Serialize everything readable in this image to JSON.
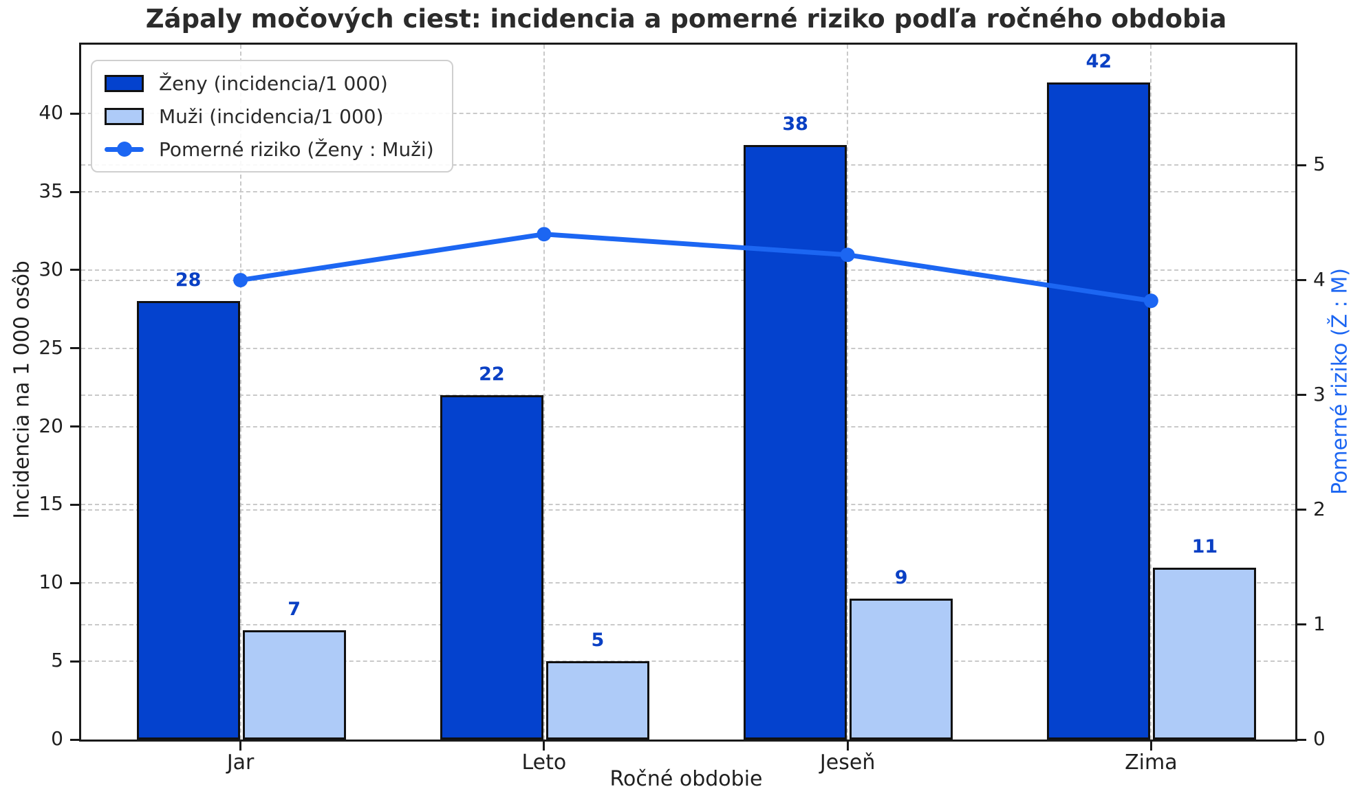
{
  "chart_data": {
    "type": "bar+line",
    "title": "Zápaly močových ciest: incidencia a pomerné riziko podľa ročného obdobia",
    "categories": [
      "Jar",
      "Leto",
      "Jeseň",
      "Zima"
    ],
    "series": [
      {
        "name": "Ženy (incidencia/1 000)",
        "kind": "bar",
        "axis": "left",
        "values": [
          28,
          22,
          38,
          42
        ],
        "color": "#0442CE"
      },
      {
        "name": "Muži (incidencia/1 000)",
        "kind": "bar",
        "axis": "left",
        "values": [
          7,
          5,
          9,
          11
        ],
        "color": "#AECBF8"
      },
      {
        "name": "Pomerné riziko (Ženy : Muži)",
        "kind": "line",
        "axis": "right",
        "values": [
          4.0,
          4.4,
          4.22,
          3.82
        ],
        "color": "#1C66F2"
      }
    ],
    "xlabel": "Ročné obdobie",
    "ylabel_left": "Incidencia na 1 000 osôb",
    "ylabel_right": "Pomerné riziko (Ž : M)",
    "yticks_left": [
      0,
      5,
      10,
      15,
      20,
      25,
      30,
      35,
      40
    ],
    "yticks_right": [
      0,
      1,
      2,
      3,
      4,
      5
    ],
    "ylim_left": [
      0,
      44.4
    ],
    "ylim_right": [
      0,
      6.05
    ],
    "grid": true,
    "legend_position": "upper left",
    "colors": {
      "value_label": "#0A40C4",
      "grid": "#C9C9C9",
      "spine": "#1A1A1A",
      "bar_edge": "#111111",
      "right_axis_label": "#1C66F2"
    }
  }
}
